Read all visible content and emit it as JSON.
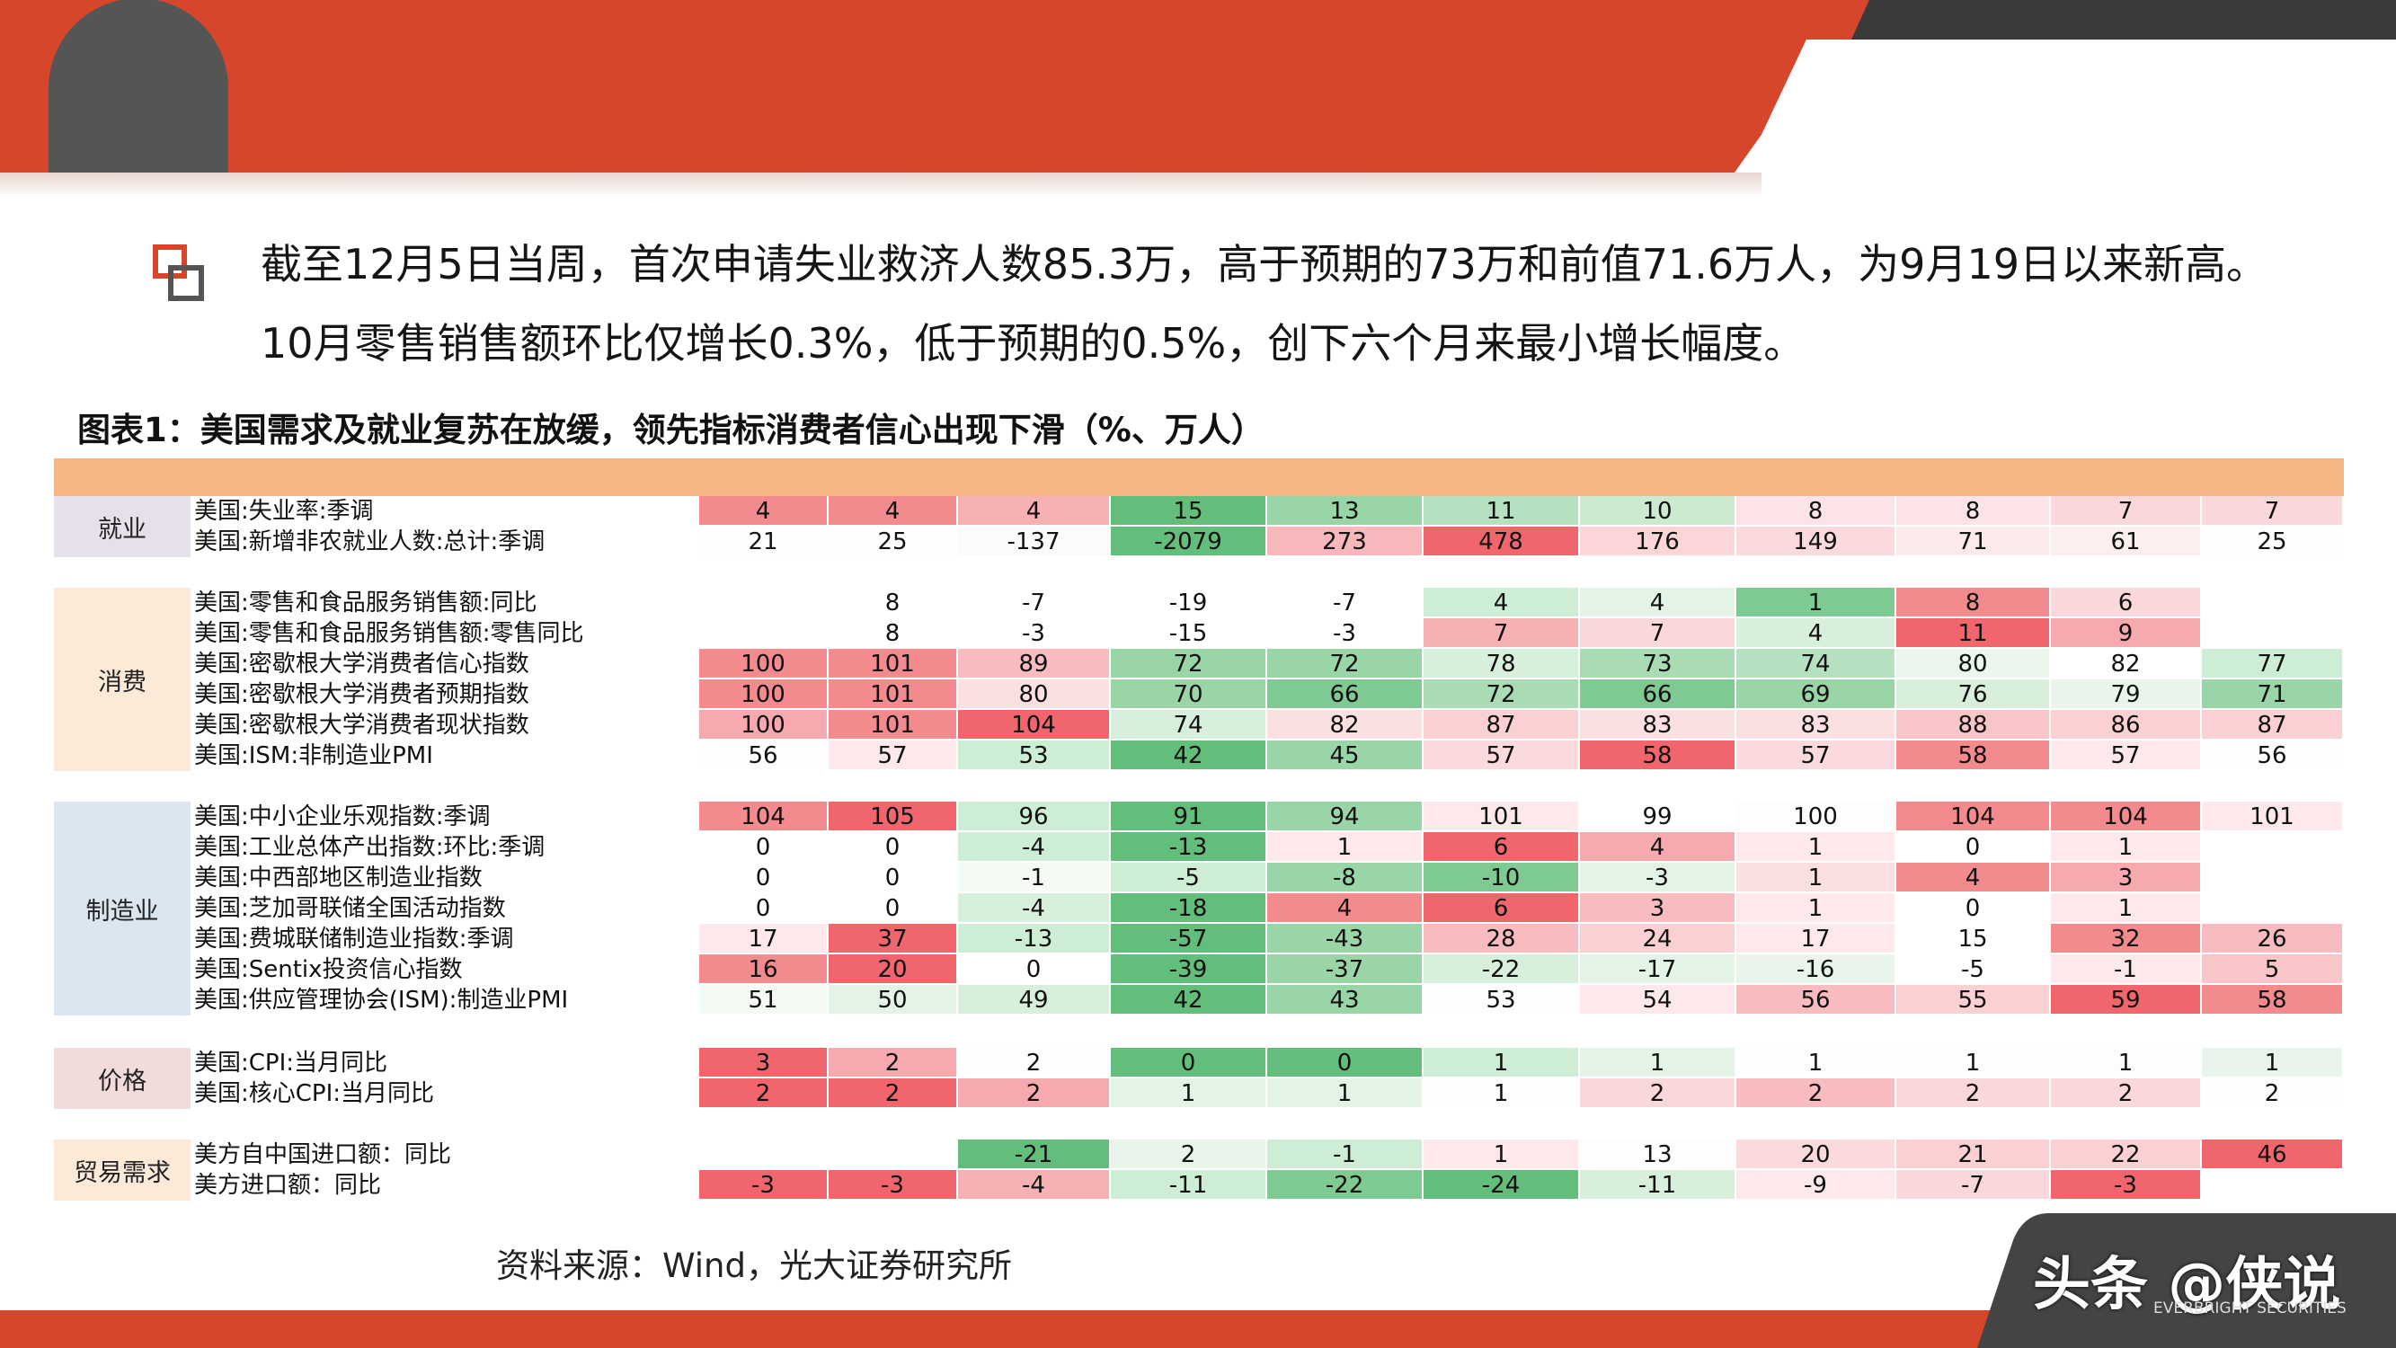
{
  "intro": {
    "line1": "截至12月5日当周，首次申请失业救济人数85.3万，高于预期的73万和前值71.6万人，为9月19日以来新高。",
    "line2": "10月零售销售额环比仅增长0.3%，低于预期的0.5%，创下六个月来最小增长幅度。"
  },
  "figure_title": "图表1：美国需求及就业复苏在放缓，领先指标消费者信心出现下滑（%、万人）",
  "source": "资料来源：Wind，光大证券研究所",
  "watermark": {
    "main": "头条 @侠说",
    "sub": "EVERBRIGHT SECURITIES"
  },
  "colors": {
    "brand_orange": "#d6462a",
    "dark_gray": "#3a3a3a",
    "header_band": "#f7b683",
    "group_bg": "#e5e0ec",
    "group_bg_peach": "#fde9d8",
    "group_bg_blue": "#dce6f1",
    "group_bg_pink": "#f2dcdb"
  },
  "table": {
    "groups": [
      {
        "name": "就业",
        "rows": [
          {
            "label": "美国:失业率:季调",
            "values": [
              "4",
              "4",
              "4",
              "15",
              "13",
              "11",
              "10",
              "8",
              "8",
              "7",
              "7"
            ],
            "colors": [
              "#f28a8e",
              "#f28a8e",
              "#f7b0b4",
              "#63be7b",
              "#9ad5a7",
              "#b6e1c0",
              "#cbeacf",
              "#fce4e6",
              "#fce4e6",
              "#fad7da",
              "#fad7da"
            ]
          },
          {
            "label": "美国:新增非农就业人数:总计:季调",
            "values": [
              "21",
              "25",
              "-137",
              "-2079",
              "273",
              "478",
              "176",
              "149",
              "71",
              "61",
              "25"
            ],
            "colors": [
              "#fefefe",
              "#fefefe",
              "#fafcfa",
              "#63be7b",
              "#f8b7bb",
              "#f1666d",
              "#fbd5d8",
              "#fbdadd",
              "#fbe9eb",
              "#fdeef0",
              "#fefefe"
            ]
          }
        ]
      },
      {
        "name": "消费",
        "rows": [
          {
            "label": "美国:零售和食品服务销售额:同比",
            "values": [
              "",
              "8",
              "-7",
              "-19",
              "-7",
              "4",
              "4",
              "1",
              "8",
              "6",
              ""
            ],
            "colors": [
              "#ffffff",
              "#ffffff",
              "#ffffff",
              "#ffffff",
              "#ffffff",
              "#cdeed5",
              "#e3f4e7",
              "#7fc992",
              "#f28a8e",
              "#fad7da",
              "#ffffff"
            ]
          },
          {
            "label": "美国:零售和食品服务销售额:零售同比",
            "values": [
              "",
              "8",
              "-3",
              "-15",
              "-3",
              "7",
              "7",
              "4",
              "11",
              "9",
              ""
            ],
            "colors": [
              "#ffffff",
              "#ffffff",
              "#ffffff",
              "#ffffff",
              "#ffffff",
              "#f7b0b4",
              "#fad7da",
              "#d8efdc",
              "#f1666d",
              "#f6a9ae",
              "#ffffff"
            ]
          },
          {
            "label": "美国:密歇根大学消费者信心指数",
            "values": [
              "100",
              "101",
              "89",
              "72",
              "72",
              "78",
              "73",
              "74",
              "80",
              "82",
              "77"
            ],
            "colors": [
              "#f28a8e",
              "#f28a8e",
              "#f8bcc0",
              "#9ad5a7",
              "#9ad5a7",
              "#d8efdc",
              "#a9dbb4",
              "#b6e1c0",
              "#ebf6ed",
              "#ffffff",
              "#cdeed5"
            ]
          },
          {
            "label": "美国:密歇根大学消费者预期指数",
            "values": [
              "100",
              "101",
              "80",
              "70",
              "66",
              "72",
              "66",
              "69",
              "76",
              "79",
              "71"
            ],
            "colors": [
              "#f28a8e",
              "#f28a8e",
              "#fbe0e2",
              "#9ad5a7",
              "#7fc992",
              "#a9dbb4",
              "#7fc992",
              "#9ad5a7",
              "#d8efdc",
              "#e9f5eb",
              "#9ad5a7"
            ]
          },
          {
            "label": "美国:密歇根大学消费者现状指数",
            "values": [
              "100",
              "101",
              "104",
              "74",
              "82",
              "87",
              "83",
              "83",
              "88",
              "86",
              "87"
            ],
            "colors": [
              "#f6a9ae",
              "#f28a8e",
              "#f1666d",
              "#d8efdc",
              "#fbe0e2",
              "#fad0d3",
              "#fbe0e2",
              "#fbe0e2",
              "#f8c5c8",
              "#fad0d3",
              "#fad0d3"
            ]
          },
          {
            "label": "美国:ISM:非制造业PMI",
            "values": [
              "56",
              "57",
              "53",
              "42",
              "45",
              "57",
              "58",
              "57",
              "58",
              "57",
              "56"
            ],
            "colors": [
              "#fbfefc",
              "#fde9eb",
              "#cdeed5",
              "#63be7b",
              "#9ad5a7",
              "#fbdadd",
              "#f1666d",
              "#fbdadd",
              "#f28a8e",
              "#fde9eb",
              "#fbfefc"
            ]
          }
        ]
      },
      {
        "name": "制造业",
        "rows": [
          {
            "label": "美国:中小企业乐观指数:季调",
            "values": [
              "104",
              "105",
              "96",
              "91",
              "94",
              "101",
              "99",
              "100",
              "104",
              "104",
              "101"
            ],
            "colors": [
              "#f28a8e",
              "#f1666d",
              "#cdeed5",
              "#63be7b",
              "#9ad5a7",
              "#fde9eb",
              "#ffffff",
              "#fdfdfd",
              "#f28a8e",
              "#f28a8e",
              "#fde9eb"
            ]
          },
          {
            "label": "美国:工业总体产出指数:环比:季调",
            "values": [
              "0",
              "0",
              "-4",
              "-13",
              "1",
              "6",
              "4",
              "1",
              "0",
              "1",
              ""
            ],
            "colors": [
              "#ffffff",
              "#ffffff",
              "#cdeed5",
              "#63be7b",
              "#fde9eb",
              "#f1666d",
              "#f6a9ae",
              "#fde9eb",
              "#ffffff",
              "#fde9eb",
              "#ffffff"
            ]
          },
          {
            "label": "美国:中西部地区制造业指数",
            "values": [
              "0",
              "0",
              "-1",
              "-5",
              "-8",
              "-10",
              "-3",
              "1",
              "4",
              "3",
              ""
            ],
            "colors": [
              "#ffffff",
              "#ffffff",
              "#f4fbf5",
              "#cdeed5",
              "#9ad5a7",
              "#7fc992",
              "#e3f4e7",
              "#fbe0e2",
              "#f28a8e",
              "#f6a9ae",
              "#ffffff"
            ]
          },
          {
            "label": "美国:芝加哥联储全国活动指数",
            "values": [
              "0",
              "0",
              "-4",
              "-18",
              "4",
              "6",
              "3",
              "1",
              "0",
              "1",
              ""
            ],
            "colors": [
              "#ffffff",
              "#ffffff",
              "#d8efdc",
              "#63be7b",
              "#f28a8e",
              "#f1666d",
              "#f8bcc0",
              "#fde9eb",
              "#ffffff",
              "#fde9eb",
              "#ffffff"
            ]
          },
          {
            "label": "美国:费城联储制造业指数:季调",
            "values": [
              "17",
              "37",
              "-13",
              "-57",
              "-43",
              "28",
              "24",
              "17",
              "15",
              "32",
              "26"
            ],
            "colors": [
              "#fde9eb",
              "#f1666d",
              "#cdeed5",
              "#63be7b",
              "#9ad5a7",
              "#f8bcc0",
              "#fad0d3",
              "#fde9eb",
              "#ffffff",
              "#f28a8e",
              "#f8bcc0"
            ]
          },
          {
            "label": "美国:Sentix投资信心指数",
            "values": [
              "16",
              "20",
              "0",
              "-39",
              "-37",
              "-22",
              "-17",
              "-16",
              "-5",
              "-1",
              "5"
            ],
            "colors": [
              "#f28a8e",
              "#f1666d",
              "#ffffff",
              "#63be7b",
              "#9ad5a7",
              "#d8efdc",
              "#e3f4e7",
              "#e9f5eb",
              "#ffffff",
              "#fde9eb",
              "#f8c5c8"
            ]
          },
          {
            "label": "美国:供应管理协会(ISM):制造业PMI",
            "values": [
              "51",
              "50",
              "49",
              "42",
              "43",
              "53",
              "54",
              "56",
              "55",
              "59",
              "58"
            ],
            "colors": [
              "#f4fbf5",
              "#e3f4e7",
              "#d8efdc",
              "#63be7b",
              "#9ad5a7",
              "#fdfdfd",
              "#fde9eb",
              "#f8bcc0",
              "#fad0d3",
              "#f1666d",
              "#f28a8e"
            ]
          }
        ]
      },
      {
        "name": "价格",
        "rows": [
          {
            "label": "美国:CPI:当月同比",
            "values": [
              "3",
              "2",
              "2",
              "0",
              "0",
              "1",
              "1",
              "1",
              "1",
              "1",
              "1"
            ],
            "colors": [
              "#f1666d",
              "#f6a9ae",
              "#fdfdfd",
              "#63be7b",
              "#63be7b",
              "#cdeed5",
              "#e3f4e7",
              "#fbfefc",
              "#fbfefc",
              "#fbfefc",
              "#e9f5eb"
            ]
          },
          {
            "label": "美国:核心CPI:当月同比",
            "values": [
              "2",
              "2",
              "2",
              "1",
              "1",
              "1",
              "2",
              "2",
              "2",
              "2",
              "2"
            ],
            "colors": [
              "#f1666d",
              "#f1666d",
              "#f6a9ae",
              "#e3f4e7",
              "#e3f4e7",
              "#fdfdfd",
              "#fad7da",
              "#f8bcc0",
              "#fad7da",
              "#fad7da",
              "#fdfdfd"
            ]
          }
        ]
      },
      {
        "name": "贸易需求",
        "rows": [
          {
            "label": "美方自中国进口额：同比",
            "values": [
              "",
              "",
              "-21",
              "2",
              "-1",
              "1",
              "13",
              "20",
              "21",
              "22",
              "46"
            ],
            "colors": [
              "#ffffff",
              "#ffffff",
              "#63be7b",
              "#e9f5eb",
              "#cdeed5",
              "#fde9eb",
              "#fdfdfd",
              "#fbdadd",
              "#fad0d3",
              "#fad0d3",
              "#f1666d"
            ]
          },
          {
            "label": "美方进口额：同比",
            "values": [
              "-3",
              "-3",
              "-4",
              "-11",
              "-22",
              "-24",
              "-11",
              "-9",
              "-7",
              "-3",
              ""
            ],
            "colors": [
              "#f1666d",
              "#f1666d",
              "#f7b0b4",
              "#cdeed5",
              "#7fc992",
              "#63be7b",
              "#d8efdc",
              "#fde9eb",
              "#fad7da",
              "#f1666d",
              "#ffffff"
            ]
          }
        ]
      }
    ]
  }
}
